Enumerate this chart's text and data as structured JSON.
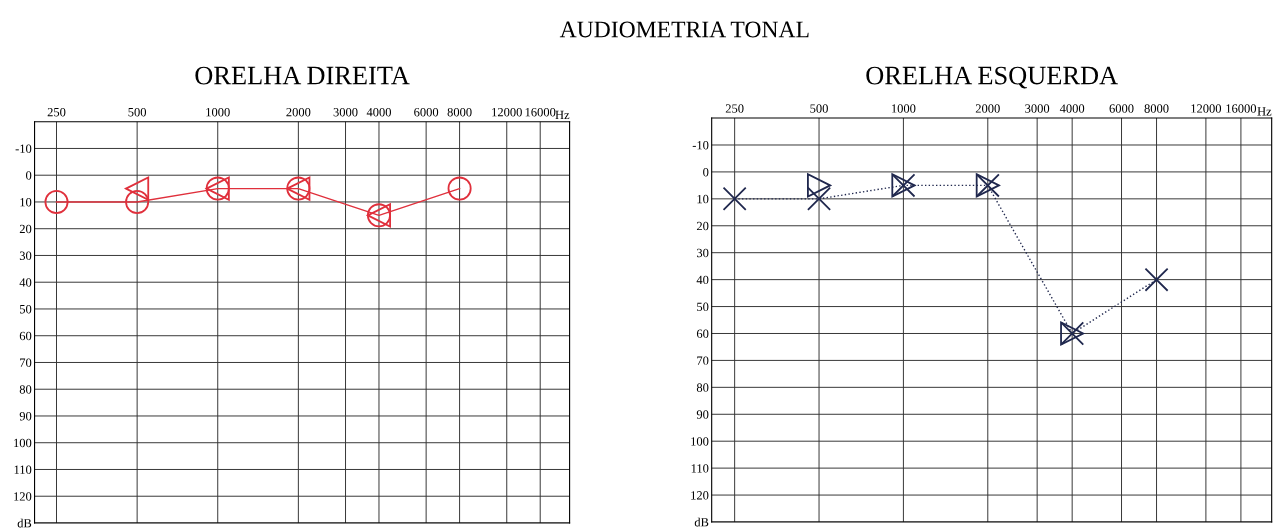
{
  "chart_data": [
    {
      "type": "line",
      "title": "AUDIOMETRIA TONAL",
      "subtitle": "ORELHA DIREITA",
      "xlabel": "Hz",
      "log": "x",
      "xlim": [
        207,
        20600
      ],
      "xticks": [
        250,
        500,
        1000,
        2000,
        3000,
        4000,
        6000,
        8000,
        12000,
        16000
      ],
      "ylim": [
        130,
        -20
      ],
      "yticks": [
        -10,
        0,
        10,
        20,
        30,
        40,
        50,
        60,
        70,
        80,
        90,
        100,
        110,
        120,
        {
          "value": 130,
          "label": "dB"
        }
      ],
      "grid": true,
      "series": [
        {
          "color": "#e0303c",
          "marker": "circle",
          "line_style": "solid",
          "x": [
            250,
            500,
            1000,
            2000,
            4000,
            8000
          ],
          "values": [
            10,
            10,
            5,
            5,
            15,
            5
          ]
        },
        {
          "type": "scatter",
          "color": "#e0303c",
          "marker": "triangle",
          "x": [
            500,
            1000,
            2000,
            4000
          ],
          "values": [
            5,
            5,
            5,
            15
          ]
        }
      ]
    },
    {
      "type": "line",
      "subtitle": "ORELHA ESQUERDA",
      "xlabel": "Hz",
      "log": "x",
      "xlim": [
        207,
        20600
      ],
      "xticks": [
        250,
        500,
        1000,
        2000,
        3000,
        4000,
        6000,
        8000,
        12000,
        16000
      ],
      "ylim": [
        130,
        -20
      ],
      "yticks": [
        -10,
        0,
        10,
        20,
        30,
        40,
        50,
        60,
        70,
        80,
        90,
        100,
        110,
        120,
        {
          "value": 130,
          "label": "dB"
        }
      ],
      "grid": true,
      "series": [
        {
          "color": "#20284e",
          "marker": "cross",
          "line_style": "dotted",
          "x": [
            250,
            500,
            1000,
            2000,
            4000,
            8000
          ],
          "values": [
            10,
            10,
            5,
            5,
            60,
            40
          ]
        },
        {
          "type": "scatter",
          "color": "#20284e",
          "marker": "triangle",
          "x": [
            500,
            1000,
            2000,
            4000
          ],
          "values": [
            5,
            5,
            5,
            60
          ]
        }
      ]
    }
  ]
}
